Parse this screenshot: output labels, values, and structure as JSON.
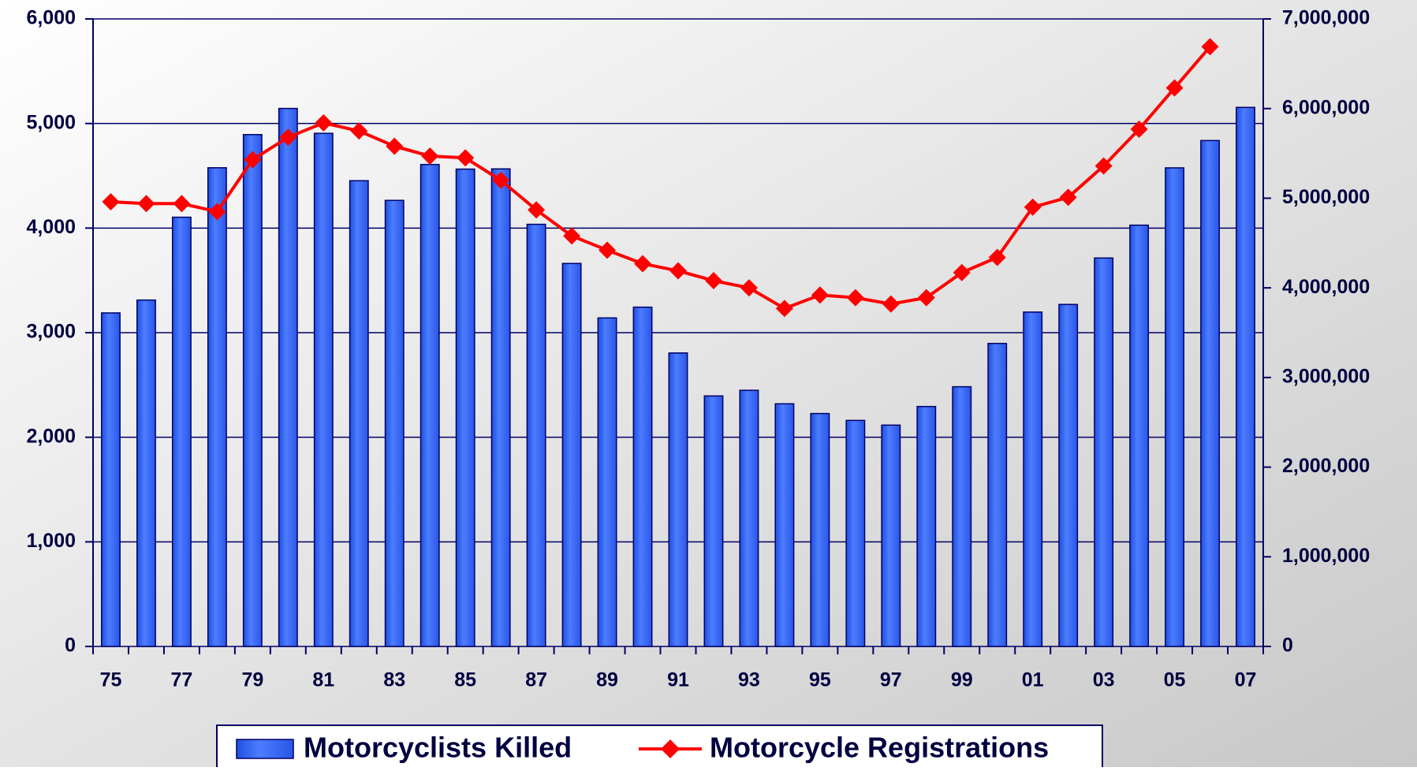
{
  "chart_data": {
    "type": "bar_line",
    "categories": [
      "75",
      null,
      "77",
      null,
      "79",
      null,
      "81",
      null,
      "83",
      null,
      "85",
      null,
      "87",
      null,
      "89",
      null,
      "91",
      null,
      "93",
      null,
      "95",
      null,
      "97",
      null,
      "99",
      null,
      "01",
      null,
      "03",
      null,
      "05",
      null,
      "07"
    ],
    "series": [
      {
        "name": "Motorcyclists Killed",
        "type": "bar",
        "color": "#3366ff",
        "axis": "y",
        "values": [
          3189,
          3312,
          4104,
          4577,
          4894,
          5144,
          4906,
          4453,
          4265,
          4608,
          4564,
          4566,
          4036,
          3662,
          3141,
          3244,
          2806,
          2395,
          2449,
          2320,
          2227,
          2161,
          2116,
          2294,
          2483,
          2897,
          3197,
          3270,
          3714,
          4028,
          4576,
          4837,
          5154
        ]
      },
      {
        "name": "Motorcycle Registrations",
        "type": "line",
        "color": "#ff0000",
        "axis": "y2",
        "values": [
          4960000,
          4940000,
          4940000,
          4850000,
          5430000,
          5680000,
          5840000,
          5750000,
          5580000,
          5470000,
          5450000,
          5200000,
          4870000,
          4580000,
          4420000,
          4270000,
          4190000,
          4080000,
          4000000,
          3770000,
          3920000,
          3890000,
          3820000,
          3890000,
          4170000,
          4340000,
          4900000,
          5010000,
          5360000,
          5770000,
          6230000,
          6690000,
          null
        ]
      }
    ],
    "ylim": [
      0,
      6000
    ],
    "yticks": [
      0,
      {
        "value": 1000,
        "label": "1,000"
      },
      {
        "value": 2000,
        "label": "2,000"
      },
      {
        "value": 3000,
        "label": "3,000"
      },
      {
        "value": 4000,
        "label": "4,000"
      },
      {
        "value": 5000,
        "label": "5,000"
      },
      {
        "value": 6000,
        "label": "6,000"
      }
    ],
    "y2lim": [
      0,
      7000000
    ],
    "y2ticks": [
      0,
      {
        "value": 1000000,
        "label": "1,000,000"
      },
      {
        "value": 2000000,
        "label": "2,000,000"
      },
      {
        "value": 3000000,
        "label": "3,000,000"
      },
      {
        "value": 4000000,
        "label": "4,000,000"
      },
      {
        "value": 5000000,
        "label": "5,000,000"
      },
      {
        "value": 6000000,
        "label": "6,000,000"
      },
      {
        "value": 7000000,
        "label": "7,000,000"
      }
    ],
    "grid": true,
    "legend": "bottom"
  }
}
